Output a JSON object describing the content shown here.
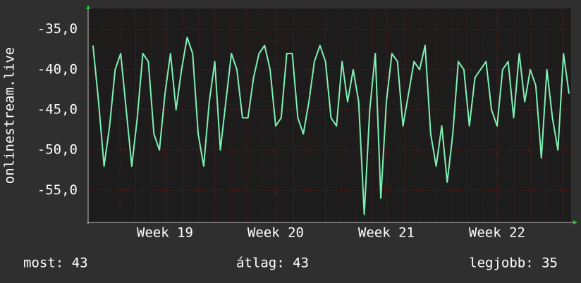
{
  "chart_data": {
    "type": "line",
    "y_label": "onlinestream.live",
    "color": "#7ff0b4",
    "x": [
      18.35,
      18.4,
      18.45,
      18.5,
      18.55,
      18.6,
      18.65,
      18.7,
      18.75,
      18.8,
      18.85,
      18.9,
      18.95,
      19.0,
      19.05,
      19.1,
      19.15,
      19.2,
      19.25,
      19.3,
      19.35,
      19.4,
      19.45,
      19.5,
      19.55,
      19.6,
      19.65,
      19.7,
      19.75,
      19.8,
      19.85,
      19.9,
      19.95,
      20.0,
      20.05,
      20.1,
      20.15,
      20.2,
      20.25,
      20.3,
      20.35,
      20.4,
      20.45,
      20.5,
      20.55,
      20.6,
      20.65,
      20.7,
      20.75,
      20.8,
      20.85,
      20.9,
      20.95,
      21.0,
      21.05,
      21.1,
      21.15,
      21.2,
      21.25,
      21.3,
      21.35,
      21.4,
      21.45,
      21.5,
      21.55,
      21.6,
      21.65,
      21.7,
      21.75,
      21.8,
      21.85,
      21.9,
      21.95,
      22.0,
      22.05,
      22.1,
      22.15,
      22.2,
      22.25,
      22.3,
      22.35,
      22.4,
      22.45,
      22.5,
      22.55,
      22.6,
      22.65
    ],
    "values": [
      -37,
      -44,
      -52,
      -47,
      -40,
      -38,
      -45,
      -52,
      -46,
      -38,
      -39,
      -48,
      -50,
      -43,
      -38,
      -45,
      -40,
      -36,
      -38,
      -48,
      -52,
      -44,
      -39,
      -50,
      -44,
      -38,
      -40,
      -46,
      -46,
      -41,
      -38,
      -37,
      -40,
      -47,
      -46,
      -38,
      -38,
      -46,
      -48,
      -44,
      -39,
      -37,
      -39,
      -46,
      -47,
      -39,
      -44,
      -40,
      -44,
      -58,
      -45,
      -38,
      -56,
      -44,
      -38,
      -39,
      -47,
      -43,
      -39,
      -40,
      -37,
      -48,
      -52,
      -47,
      -54,
      -48,
      -39,
      -40,
      -47,
      -41,
      -40,
      -39,
      -45,
      -47,
      -40,
      -39,
      -46,
      -38,
      -44,
      -40,
      -42,
      -51,
      -40,
      -46,
      -50,
      -38,
      -43
    ],
    "xlim": [
      18.306,
      22.669
    ],
    "xticks": [
      {
        "value": 19,
        "label": "Week 19"
      },
      {
        "value": 20,
        "label": "Week 20"
      },
      {
        "value": 21,
        "label": "Week 21"
      },
      {
        "value": 22,
        "label": "Week 22"
      }
    ],
    "ylim": [
      -59,
      -32.4
    ],
    "yticks": [
      {
        "value": -35,
        "label": "-35,0"
      },
      {
        "value": -40,
        "label": "-40,0"
      },
      {
        "value": -45,
        "label": "-45,0"
      },
      {
        "value": -50,
        "label": "-50,0"
      },
      {
        "value": -55,
        "label": "-55,0"
      }
    ],
    "grid": true,
    "stats": [
      "most: 43",
      "átlag: 43",
      "legjobb: 35"
    ]
  }
}
